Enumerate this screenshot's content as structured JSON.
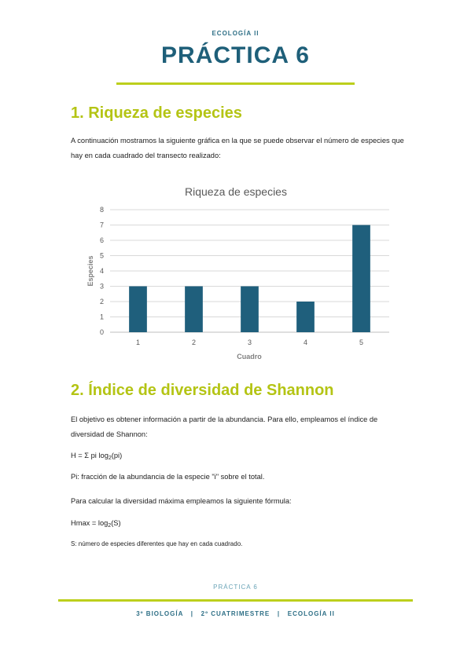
{
  "header": {
    "subject": "ECOLOGÍA II",
    "title": "PRÁCTICA 6"
  },
  "section1": {
    "heading": "1. Riqueza de especies",
    "intro": "A continuación mostramos la siguiente gráfica en la que se puede observar el número de especies que hay en cada cuadrado del transecto realizado:"
  },
  "chart_data": {
    "type": "bar",
    "title": "Riqueza de especies",
    "xlabel": "Cuadro",
    "ylabel": "Especies",
    "categories": [
      "1",
      "2",
      "3",
      "4",
      "5"
    ],
    "values": [
      3,
      3,
      3,
      2,
      7
    ],
    "ylim": [
      0,
      8
    ],
    "yticks": [
      0,
      1,
      2,
      3,
      4,
      5,
      6,
      7,
      8
    ],
    "grid": true,
    "bar_color": "#1f5f7c"
  },
  "section2": {
    "heading": "2. Índice de diversidad de Shannon",
    "p1": "El objetivo es obtener información a partir de la abundancia. Para ello, empleamos el índice de diversidad de Shannon:",
    "formula_main": "H = Σ pi log",
    "formula_sub": "2",
    "formula_end": "(pi)",
    "p2": "Pi: fracción de la abundancia de la especie \"i\" sobre el total.",
    "p3": "Para calcular la diversidad máxima empleamos la siguiente fórmula:",
    "hmax_main": "Hmax = log",
    "hmax_sub": "2",
    "hmax_end": "(S)",
    "p4": "S: número de especies diferentes que hay en cada cuadrado."
  },
  "footer": {
    "page": "PRÁCTICA 6",
    "info": "3º BIOLOGÍA   |   2º CUATRIMESTRE   |   ECOLOGÍA II"
  },
  "colors": {
    "accent_green": "#bccf1c",
    "title_blue": "#1e5f79",
    "bar_blue": "#1f5f7c"
  }
}
